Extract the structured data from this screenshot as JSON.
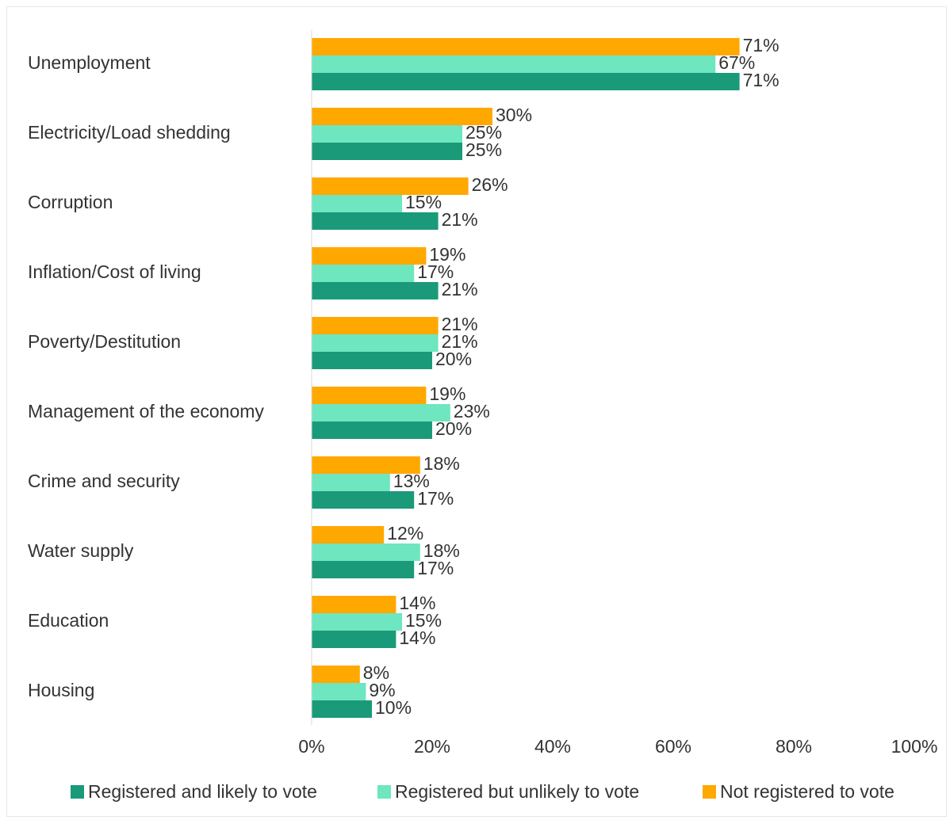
{
  "chart_data": {
    "type": "bar",
    "orientation": "horizontal",
    "categories": [
      "Unemployment",
      "Electricity/Load shedding",
      "Corruption",
      "Inflation/Cost of living",
      "Poverty/Destitution",
      "Management of the economy",
      "Crime and security",
      "Water supply",
      "Education",
      "Housing"
    ],
    "series": [
      {
        "name": "Registered and likely to vote",
        "color": "#1a9a78",
        "values": [
          71,
          25,
          21,
          21,
          20,
          20,
          17,
          17,
          14,
          10
        ],
        "value_labels": [
          "71%",
          "25%",
          "21%",
          "21%",
          "20%",
          "20%",
          "17%",
          "17%",
          "14%",
          "10%"
        ]
      },
      {
        "name": "Registered but unlikely to vote",
        "color": "#6ee6c0",
        "values": [
          67,
          25,
          15,
          17,
          21,
          23,
          13,
          18,
          15,
          9
        ],
        "value_labels": [
          "67%",
          "25%",
          "15%",
          "17%",
          "21%",
          "23%",
          "13%",
          "18%",
          "15%",
          "9%"
        ]
      },
      {
        "name": "Not registered to vote",
        "color": "#ffa800",
        "values": [
          71,
          30,
          26,
          19,
          21,
          19,
          18,
          12,
          14,
          8
        ],
        "value_labels": [
          "71%",
          "30%",
          "26%",
          "19%",
          "21%",
          "19%",
          "18%",
          "12%",
          "14%",
          "8%"
        ]
      }
    ],
    "xlim": [
      0,
      100
    ],
    "xticks": [
      {
        "value": 0,
        "label": "0%"
      },
      {
        "value": 20,
        "label": "20%"
      },
      {
        "value": 40,
        "label": "40%"
      },
      {
        "value": 60,
        "label": "60%"
      },
      {
        "value": 80,
        "label": "80%"
      },
      {
        "value": 100,
        "label": "100%"
      }
    ],
    "grid": false,
    "legend": "bottom"
  }
}
